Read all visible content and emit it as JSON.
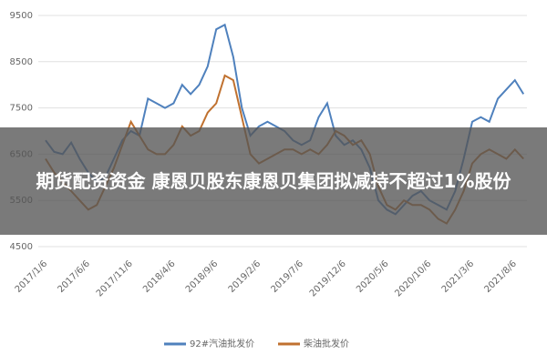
{
  "chart_data": {
    "type": "line",
    "categories": [
      "2017/1/6",
      null,
      null,
      null,
      null,
      "2017/6/6",
      null,
      null,
      null,
      null,
      "2017/11/6",
      null,
      null,
      null,
      null,
      "2018/4/6",
      null,
      null,
      null,
      null,
      "2018/9/6",
      null,
      null,
      null,
      null,
      "2019/2/6",
      null,
      null,
      null,
      null,
      "2019/7/6",
      null,
      null,
      null,
      null,
      "2019/12/6",
      null,
      null,
      null,
      null,
      "2020/5/6",
      null,
      null,
      null,
      null,
      "2020/10/6",
      null,
      null,
      null,
      null,
      "2021/3/6",
      null,
      null,
      null,
      null,
      "2021/8/6",
      null
    ],
    "series": [
      {
        "name": "92#汽油批发价",
        "color": "#4f81bd",
        "values": [
          6800,
          6550,
          6500,
          6750,
          6400,
          6100,
          5900,
          6000,
          6400,
          6800,
          7000,
          6900,
          7700,
          7600,
          7500,
          7600,
          8000,
          7800,
          8000,
          8400,
          9200,
          9300,
          8600,
          7500,
          6900,
          7100,
          7200,
          7100,
          7000,
          6800,
          6700,
          6800,
          7300,
          7600,
          6900,
          6700,
          6800,
          6600,
          6200,
          5500,
          5300,
          5200,
          5400,
          5600,
          5700,
          5500,
          5400,
          5300,
          5700,
          6400,
          7200,
          7300,
          7200,
          7700,
          7900,
          8100,
          7800
        ]
      },
      {
        "name": "柴油批发价",
        "color": "#c0712f",
        "values": [
          6400,
          6100,
          5900,
          5700,
          5500,
          5300,
          5400,
          5800,
          6200,
          6700,
          7200,
          6900,
          6600,
          6500,
          6500,
          6700,
          7100,
          6900,
          7000,
          7400,
          7600,
          8200,
          8100,
          7300,
          6500,
          6300,
          6400,
          6500,
          6600,
          6600,
          6500,
          6600,
          6500,
          6700,
          7000,
          6900,
          6700,
          6800,
          6500,
          5800,
          5400,
          5300,
          5500,
          5400,
          5400,
          5300,
          5100,
          5000,
          5300,
          5700,
          6300,
          6500,
          6600,
          6500,
          6400,
          6600,
          6400
        ]
      }
    ],
    "ylim": [
      4500,
      9500
    ],
    "yticks": [
      4500,
      5500,
      6500,
      7500,
      8500,
      9500
    ],
    "grid": true,
    "legend": "bottom"
  },
  "headline": "期货配资资金 康恩贝股东康恩贝集团拟减持不超过1%股份"
}
